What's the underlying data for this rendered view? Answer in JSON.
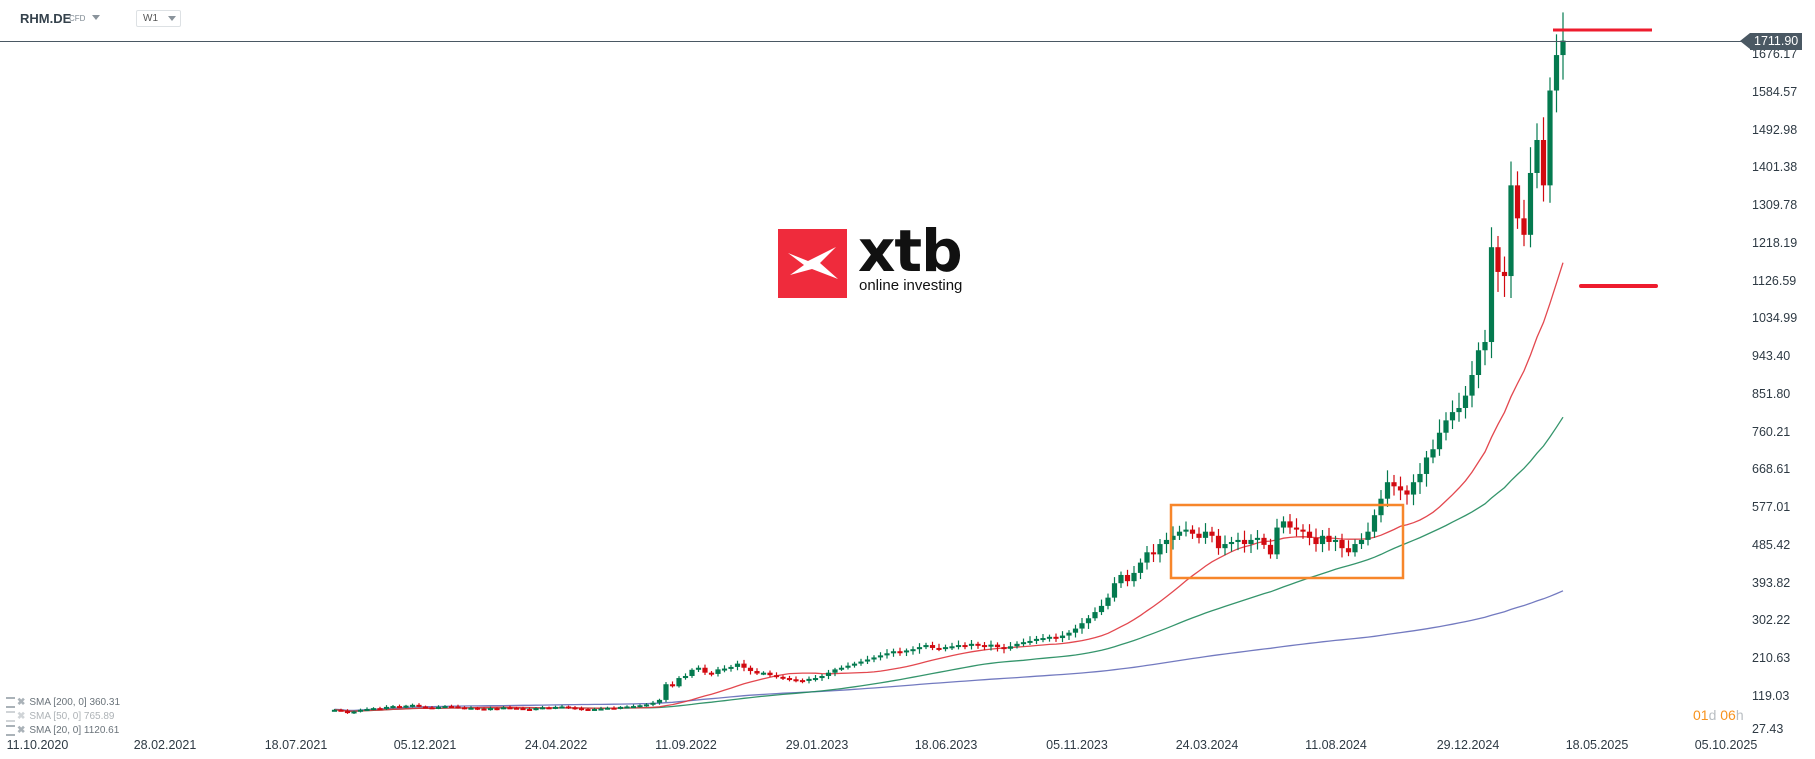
{
  "header": {
    "symbol": "RHM.DE",
    "instrument_type": "CFD",
    "timeframe": "W1"
  },
  "logo": {
    "brand": "xtb",
    "tagline": "online investing",
    "box_color": "#ef2b3c"
  },
  "current_price": "1711.90",
  "countdown": {
    "days": "01",
    "days_unit": "d",
    "hours": "06",
    "hours_unit": "h"
  },
  "indicators": [
    {
      "name": "SMA",
      "params": "[200,  0]",
      "value": "360.31",
      "color": "#5b63b5"
    },
    {
      "name": "SMA",
      "params": "[50,  0]",
      "value": "765.89",
      "color": "#1f8a5c"
    },
    {
      "name": "SMA",
      "params": "[20,  0]",
      "value": "1120.61",
      "color": "#e0343c"
    }
  ],
  "colors": {
    "up": "#047a4f",
    "down": "#d20a11",
    "highlight_box": "#f7862a",
    "level_line": "#ee1c2e",
    "price_line": "#4a5863"
  },
  "chart_data": {
    "type": "candlestick",
    "title": "RHM.DE CFD W1",
    "xlabel": "",
    "ylabel": "",
    "y_ticks": [
      "1676.17",
      "1584.57",
      "1492.98",
      "1401.38",
      "1309.78",
      "1218.19",
      "1126.59",
      "1034.99",
      "943.40",
      "851.80",
      "760.21",
      "668.61",
      "577.01",
      "485.42",
      "393.82",
      "302.22",
      "210.63",
      "119.03",
      "27.43"
    ],
    "x_ticks": [
      "11.10.2020",
      "28.02.2021",
      "18.07.2021",
      "05.12.2021",
      "24.04.2022",
      "11.09.2022",
      "29.01.2023",
      "18.06.2023",
      "05.11.2023",
      "24.03.2024",
      "11.08.2024",
      "29.12.2024",
      "18.05.2025",
      "05.10.2025"
    ],
    "ylim": [
      27.43,
      1740
    ],
    "annotations": [
      {
        "type": "rectangle",
        "label": "consolidation range",
        "from": "~Feb 2024",
        "to": "~Oct 2024",
        "price_low": 410,
        "price_high": 560
      },
      {
        "type": "hline",
        "label": "resistance level",
        "price": 1740
      },
      {
        "type": "hline",
        "label": "support level",
        "price": 1126
      },
      {
        "type": "hline",
        "label": "current price",
        "price": 1711.9
      }
    ],
    "closes_weekly": [
      88,
      86,
      80,
      84,
      88,
      90,
      92,
      91,
      95,
      97,
      96,
      98,
      100,
      96,
      94,
      92,
      95,
      97,
      96,
      94,
      92,
      93,
      91,
      90,
      92,
      91,
      94,
      93,
      92,
      90,
      89,
      92,
      94,
      93,
      95,
      96,
      94,
      92,
      90,
      88,
      90,
      91,
      93,
      92,
      95,
      96,
      97,
      99,
      101,
      105,
      112,
      150,
      145,
      165,
      170,
      185,
      190,
      178,
      175,
      186,
      188,
      192,
      200,
      190,
      182,
      176,
      178,
      172,
      168,
      165,
      162,
      160,
      158,
      163,
      165,
      170,
      178,
      186,
      190,
      195,
      200,
      205,
      210,
      215,
      220,
      225,
      230,
      228,
      232,
      235,
      240,
      245,
      238,
      236,
      240,
      242,
      245,
      243,
      248,
      245,
      242,
      246,
      240,
      236,
      242,
      248,
      252,
      255,
      260,
      262,
      265,
      262,
      268,
      275,
      285,
      298,
      310,
      325,
      340,
      360,
      395,
      415,
      400,
      420,
      445,
      470,
      465,
      490,
      500,
      510,
      520,
      525,
      515,
      505,
      520,
      510,
      480,
      490,
      495,
      500,
      490,
      500,
      505,
      488,
      465,
      530,
      545,
      530,
      525,
      520,
      505,
      490,
      510,
      495,
      500,
      480,
      470,
      490,
      500,
      520,
      560,
      600,
      640,
      630,
      620,
      610,
      640,
      660,
      700,
      720,
      760,
      790,
      810,
      820,
      850,
      900,
      960,
      980,
      1210,
      1150,
      1140,
      1360,
      1280,
      1240,
      1390,
      1470,
      1360,
      1590,
      1676,
      1711
    ],
    "series": [
      {
        "name": "SMA 20",
        "last": 1120.61
      },
      {
        "name": "SMA 50",
        "last": 765.89
      },
      {
        "name": "SMA 200",
        "last": 360.31
      }
    ]
  }
}
